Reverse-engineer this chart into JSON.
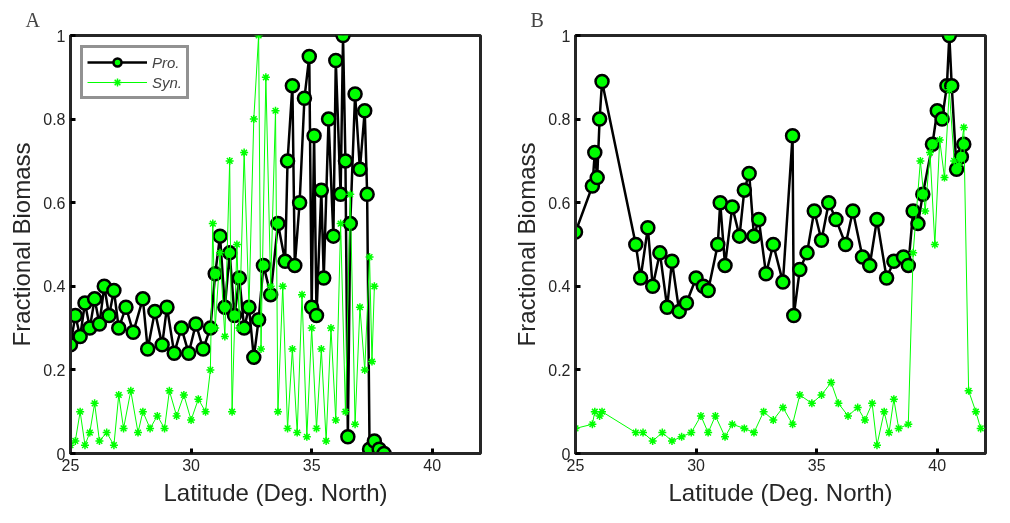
{
  "chart_data": [
    {
      "type": "line",
      "title": "A",
      "xlabel": "Latitude (Deg. North)",
      "ylabel": "Fractional Biomass",
      "xlim": [
        25,
        42
      ],
      "ylim": [
        0,
        1
      ],
      "xticks": [
        25,
        30,
        35,
        40
      ],
      "yticks": [
        0,
        0.2,
        0.4,
        0.6,
        0.8,
        1
      ],
      "grid": false,
      "legend": "top left",
      "series": [
        {
          "name": "Pro.",
          "color": "#00ff00",
          "marker": "circle",
          "x": [
            25.0,
            25.2,
            25.4,
            25.6,
            25.8,
            26.0,
            26.2,
            26.4,
            26.6,
            26.8,
            27.0,
            27.3,
            27.6,
            28.0,
            28.2,
            28.5,
            28.8,
            29.0,
            29.3,
            29.6,
            29.9,
            30.2,
            30.5,
            30.8,
            31.0,
            31.2,
            31.4,
            31.6,
            31.8,
            32.0,
            32.2,
            32.4,
            32.6,
            32.8,
            33.0,
            33.3,
            33.6,
            33.9,
            34.0,
            34.2,
            34.3,
            34.5,
            34.7,
            34.9,
            35.0,
            35.1,
            35.2,
            35.4,
            35.5,
            35.7,
            35.9,
            36.0,
            36.2,
            36.3,
            36.4,
            36.5,
            36.6,
            36.8,
            37.0,
            37.2,
            37.3,
            37.4,
            37.6,
            37.8,
            38.0
          ],
          "values": [
            0.26,
            0.33,
            0.28,
            0.36,
            0.3,
            0.37,
            0.31,
            0.4,
            0.33,
            0.39,
            0.3,
            0.35,
            0.29,
            0.37,
            0.25,
            0.34,
            0.26,
            0.35,
            0.24,
            0.3,
            0.24,
            0.31,
            0.25,
            0.3,
            0.43,
            0.52,
            0.35,
            0.48,
            0.33,
            0.42,
            0.3,
            0.35,
            0.23,
            0.32,
            0.45,
            0.38,
            0.55,
            0.46,
            0.7,
            0.88,
            0.45,
            0.6,
            0.85,
            0.95,
            0.35,
            0.76,
            0.33,
            0.63,
            0.42,
            0.8,
            0.52,
            0.94,
            0.62,
            1.0,
            0.7,
            0.04,
            0.55,
            0.86,
            0.68,
            0.82,
            0.62,
            0.01,
            0.03,
            0.01,
            0.0
          ]
        },
        {
          "name": "Syn.",
          "color": "#00ff00",
          "marker": "cross",
          "x": [
            25.0,
            25.2,
            25.4,
            25.6,
            25.8,
            26.0,
            26.2,
            26.5,
            26.8,
            27.0,
            27.2,
            27.5,
            27.8,
            28.0,
            28.3,
            28.6,
            28.9,
            29.1,
            29.4,
            29.7,
            30.0,
            30.3,
            30.6,
            30.8,
            30.9,
            31.0,
            31.2,
            31.4,
            31.6,
            31.7,
            31.9,
            32.0,
            32.2,
            32.4,
            32.6,
            32.8,
            32.9,
            33.1,
            33.3,
            33.5,
            33.6,
            33.8,
            34.0,
            34.2,
            34.4,
            34.6,
            34.8,
            35.0,
            35.2,
            35.4,
            35.6,
            35.8,
            36.0,
            36.2,
            36.4,
            36.6,
            36.8,
            37.0,
            37.2,
            37.4,
            37.5,
            37.6
          ],
          "values": [
            0.02,
            0.03,
            0.1,
            0.02,
            0.05,
            0.12,
            0.03,
            0.05,
            0.02,
            0.14,
            0.06,
            0.15,
            0.05,
            0.1,
            0.06,
            0.09,
            0.06,
            0.15,
            0.09,
            0.14,
            0.08,
            0.13,
            0.1,
            0.2,
            0.55,
            0.3,
            0.48,
            0.28,
            0.7,
            0.1,
            0.5,
            0.3,
            0.72,
            0.35,
            0.8,
            1.0,
            0.25,
            0.9,
            0.4,
            0.82,
            0.1,
            0.4,
            0.06,
            0.25,
            0.05,
            0.38,
            0.04,
            0.3,
            0.06,
            0.25,
            0.03,
            0.3,
            0.08,
            0.55,
            0.1,
            0.62,
            0.07,
            0.35,
            0.2,
            0.47,
            0.22,
            0.4
          ]
        }
      ]
    },
    {
      "type": "line",
      "title": "B",
      "xlabel": "Latitude (Deg. North)",
      "ylabel": "Fractional Biomass",
      "xlim": [
        25,
        42
      ],
      "ylim": [
        0,
        1
      ],
      "xticks": [
        25,
        30,
        35,
        40
      ],
      "yticks": [
        0,
        0.2,
        0.4,
        0.6,
        0.8,
        1
      ],
      "grid": false,
      "legend": false,
      "series": [
        {
          "color": "#00ff00",
          "marker": "circle",
          "x": [
            25.0,
            25.7,
            25.8,
            25.9,
            26.0,
            26.1,
            27.5,
            27.7,
            28.0,
            28.2,
            28.5,
            28.8,
            29.0,
            29.3,
            29.6,
            30.0,
            30.3,
            30.5,
            30.9,
            31.0,
            31.2,
            31.5,
            31.8,
            32.0,
            32.2,
            32.4,
            32.6,
            32.9,
            33.2,
            33.6,
            34.0,
            34.05,
            34.3,
            34.6,
            34.9,
            35.2,
            35.5,
            35.8,
            36.2,
            36.5,
            36.9,
            37.2,
            37.5,
            37.9,
            38.2,
            38.6,
            38.8,
            39.0,
            39.2,
            39.4,
            39.8,
            40.0,
            40.2,
            40.4,
            40.5,
            40.6,
            40.8,
            41.0,
            41.1
          ],
          "values": [
            0.53,
            0.64,
            0.72,
            0.66,
            0.8,
            0.89,
            0.5,
            0.42,
            0.54,
            0.4,
            0.48,
            0.35,
            0.46,
            0.34,
            0.36,
            0.42,
            0.4,
            0.39,
            0.5,
            0.6,
            0.45,
            0.59,
            0.52,
            0.63,
            0.67,
            0.52,
            0.56,
            0.43,
            0.5,
            0.41,
            0.76,
            0.33,
            0.44,
            0.48,
            0.58,
            0.51,
            0.6,
            0.56,
            0.5,
            0.58,
            0.47,
            0.45,
            0.56,
            0.42,
            0.46,
            0.47,
            0.45,
            0.58,
            0.55,
            0.62,
            0.74,
            0.82,
            0.8,
            0.88,
            1.0,
            0.88,
            0.68,
            0.71,
            0.74
          ]
        },
        {
          "color": "#00ff00",
          "marker": "cross",
          "x": [
            25.0,
            25.7,
            25.8,
            26.0,
            26.1,
            27.5,
            27.8,
            28.2,
            28.6,
            29.0,
            29.4,
            29.8,
            30.2,
            30.5,
            30.8,
            31.2,
            31.5,
            32.0,
            32.4,
            32.8,
            33.2,
            33.6,
            34.0,
            34.3,
            34.8,
            35.2,
            35.6,
            35.9,
            36.3,
            36.7,
            37.0,
            37.3,
            37.5,
            37.8,
            38.0,
            38.2,
            38.4,
            38.8,
            39.0,
            39.3,
            39.5,
            39.7,
            39.9,
            40.1,
            40.3,
            40.5,
            40.7,
            40.9,
            41.1,
            41.3,
            41.6,
            41.8
          ],
          "values": [
            0.06,
            0.07,
            0.1,
            0.09,
            0.1,
            0.05,
            0.05,
            0.03,
            0.05,
            0.03,
            0.04,
            0.05,
            0.09,
            0.05,
            0.09,
            0.04,
            0.07,
            0.06,
            0.05,
            0.1,
            0.08,
            0.11,
            0.07,
            0.14,
            0.12,
            0.14,
            0.17,
            0.12,
            0.09,
            0.11,
            0.08,
            0.12,
            0.02,
            0.1,
            0.05,
            0.13,
            0.06,
            0.07,
            0.48,
            0.7,
            0.58,
            0.72,
            0.5,
            0.75,
            0.66,
            0.87,
            0.7,
            0.69,
            0.78,
            0.15,
            0.1,
            0.06
          ]
        }
      ]
    }
  ]
}
